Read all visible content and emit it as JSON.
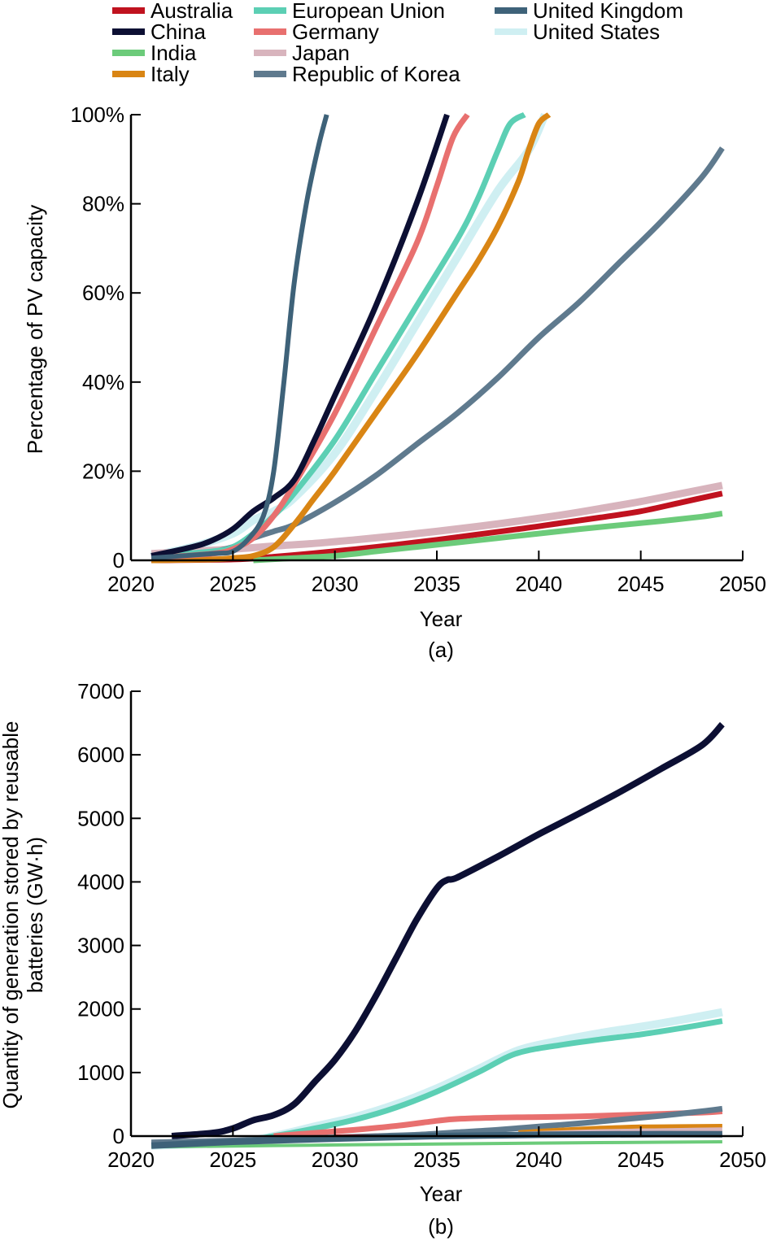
{
  "legend": {
    "entries": [
      {
        "name": "Australia",
        "color": "#c0121f"
      },
      {
        "name": "China",
        "color": "#0c0f33"
      },
      {
        "name": "India",
        "color": "#6ccb7a"
      },
      {
        "name": "Italy",
        "color": "#d98514"
      },
      {
        "name": "European Union",
        "color": "#5ccfb4"
      },
      {
        "name": "Germany",
        "color": "#e8706f"
      },
      {
        "name": "Japan",
        "color": "#d8b4bd"
      },
      {
        "name": "Republic of Korea",
        "color": "#5f7a8e"
      },
      {
        "name": "United Kingdom",
        "color": "#3e6279"
      },
      {
        "name": "United States",
        "color": "#cfeff2"
      }
    ]
  },
  "chart_data": [
    {
      "id": "a",
      "panel_label": "(a)",
      "type": "line",
      "title": "",
      "xlabel": "Year",
      "ylabel": "Percentage of PV capacity",
      "xlim": [
        2020,
        2050
      ],
      "ylim": [
        0,
        100
      ],
      "xticks": [
        2020,
        2025,
        2030,
        2035,
        2040,
        2045,
        2050
      ],
      "xtick_labels": [
        "2020",
        "2025",
        "2030",
        "2035",
        "2040",
        "2045",
        "2050"
      ],
      "yticks": [
        0,
        20,
        40,
        60,
        80,
        100
      ],
      "ytick_labels": [
        "0",
        "20%",
        "40%",
        "60%",
        "80%",
        "100%"
      ],
      "grid": false,
      "legend_position": "top",
      "series": [
        {
          "name": "United States",
          "x": [
            2021,
            2023,
            2025,
            2026,
            2027,
            2028,
            2030,
            2032,
            2034,
            2036,
            2038,
            2039.5,
            2040.3
          ],
          "y": [
            1,
            3,
            6,
            9,
            11,
            14,
            24,
            38,
            53,
            68,
            83,
            92,
            100
          ]
        },
        {
          "name": "Japan",
          "x": [
            2021,
            2023,
            2025,
            2027,
            2029,
            2031,
            2033,
            2035,
            2037,
            2039,
            2041,
            2043,
            2045,
            2047,
            2049
          ],
          "y": [
            1.5,
            2,
            2.5,
            3.2,
            3.8,
            4.6,
            5.5,
            6.5,
            7.6,
            8.8,
            10.1,
            11.6,
            13.2,
            15,
            16.8
          ]
        },
        {
          "name": "Republic of Korea",
          "x": [
            2021,
            2023,
            2025,
            2026,
            2027,
            2028,
            2030,
            2032,
            2034,
            2036,
            2038,
            2040,
            2042,
            2044,
            2046,
            2048,
            2049
          ],
          "y": [
            0.5,
            1,
            3,
            5,
            6.5,
            8,
            13,
            19,
            26,
            33,
            41,
            50,
            58,
            67,
            76,
            86,
            92.5
          ]
        },
        {
          "name": "Australia",
          "x": [
            2021,
            2025,
            2027,
            2029,
            2031,
            2033,
            2035,
            2037,
            2039,
            2041,
            2043,
            2045,
            2047,
            2049
          ],
          "y": [
            0,
            0.2,
            0.8,
            1.6,
            2.5,
            3.5,
            4.6,
            5.8,
            7.0,
            8.3,
            9.6,
            11.0,
            13.0,
            15.0
          ]
        },
        {
          "name": "India",
          "x": [
            2026,
            2028,
            2030,
            2032,
            2034,
            2036,
            2038,
            2040,
            2042,
            2044,
            2046,
            2048,
            2049
          ],
          "y": [
            0,
            0.5,
            1,
            2,
            3,
            4,
            5,
            6,
            7,
            7.9,
            8.8,
            9.8,
            10.5
          ]
        },
        {
          "name": "Italy",
          "x": [
            2021,
            2024,
            2025,
            2026,
            2027,
            2028,
            2029,
            2030,
            2032,
            2034,
            2036,
            2037,
            2038,
            2039,
            2039.5,
            2040,
            2040.5
          ],
          "y": [
            0,
            0.2,
            0.5,
            1,
            3,
            8,
            14,
            20,
            33,
            46,
            60,
            67,
            75,
            85,
            92,
            98,
            100
          ]
        },
        {
          "name": "European Union",
          "x": [
            2021,
            2024,
            2025,
            2026,
            2027,
            2028,
            2030,
            2032,
            2034,
            2036,
            2037,
            2038,
            2038.6,
            2039.3
          ],
          "y": [
            1,
            2,
            3,
            6,
            10,
            15,
            27,
            42,
            57,
            72,
            81,
            92,
            98,
            100
          ]
        },
        {
          "name": "Germany",
          "x": [
            2021,
            2024,
            2025,
            2026,
            2027,
            2028,
            2030,
            2032,
            2034,
            2035,
            2035.8,
            2036.5
          ],
          "y": [
            0.5,
            1.5,
            2.5,
            5,
            10,
            17,
            33,
            52,
            71,
            84,
            95,
            100
          ]
        },
        {
          "name": "China",
          "x": [
            2021,
            2023,
            2024,
            2025,
            2026,
            2027,
            2028,
            2029,
            2030,
            2032,
            2034,
            2035.5
          ],
          "y": [
            1,
            3,
            4.5,
            7,
            11,
            14,
            18,
            27,
            37,
            57,
            80,
            100
          ]
        },
        {
          "name": "United Kingdom",
          "x": [
            2021,
            2024,
            2025,
            2025.8,
            2026.5,
            2027,
            2027.5,
            2028,
            2028.6,
            2029.2,
            2029.6
          ],
          "y": [
            0.5,
            1.5,
            2,
            5,
            10,
            20,
            40,
            62,
            80,
            93,
            100
          ]
        }
      ]
    },
    {
      "id": "b",
      "panel_label": "(b)",
      "type": "line",
      "title": "",
      "xlabel": "Year",
      "ylabel": "Quantity of generation stored by reusable batteries (GW·h)",
      "ylabel_lines": [
        "Quantity of generation stored by reusable",
        "batteries (GW·h)"
      ],
      "xlim": [
        2020,
        2050
      ],
      "ylim": [
        0,
        7000
      ],
      "xticks": [
        2020,
        2025,
        2030,
        2035,
        2040,
        2045,
        2050
      ],
      "xtick_labels": [
        "2020",
        "2025",
        "2030",
        "2035",
        "2040",
        "2045",
        "2050"
      ],
      "yticks": [
        0,
        1000,
        2000,
        3000,
        4000,
        5000,
        6000,
        7000
      ],
      "ytick_labels": [
        "0",
        "1000",
        "2000",
        "3000",
        "4000",
        "5000",
        "6000",
        "7000"
      ],
      "grid": false,
      "legend_position": "top",
      "series": [
        {
          "name": "United States",
          "x": [
            2021,
            2025,
            2027,
            2029,
            2031,
            2033,
            2035,
            2037,
            2039,
            2041,
            2043,
            2045,
            2047,
            2049
          ],
          "y": [
            -150,
            -100,
            0,
            150,
            300,
            500,
            750,
            1050,
            1350,
            1500,
            1620,
            1720,
            1830,
            1950
          ]
        },
        {
          "name": "European Union",
          "x": [
            2021,
            2025,
            2027,
            2029,
            2031,
            2033,
            2035,
            2037,
            2038.5,
            2039.5,
            2041,
            2043,
            2045,
            2047,
            2049
          ],
          "y": [
            -150,
            -100,
            0,
            120,
            260,
            450,
            700,
            1000,
            1250,
            1350,
            1430,
            1520,
            1600,
            1700,
            1810
          ]
        },
        {
          "name": "China",
          "x": [
            2022,
            2024,
            2025,
            2026,
            2027,
            2028,
            2029,
            2030,
            2031,
            2032,
            2033,
            2034,
            2035,
            2035.5,
            2036,
            2038,
            2040,
            2042,
            2044,
            2046,
            2048,
            2049
          ],
          "y": [
            0,
            50,
            120,
            250,
            330,
            500,
            850,
            1200,
            1650,
            2200,
            2800,
            3400,
            3900,
            4030,
            4070,
            4400,
            4750,
            5080,
            5420,
            5780,
            6150,
            6480
          ]
        },
        {
          "name": "Germany",
          "x": [
            2027,
            2029,
            2031,
            2033,
            2035,
            2036,
            2038,
            2040,
            2042,
            2044,
            2046,
            2048,
            2049
          ],
          "y": [
            0,
            50,
            100,
            160,
            240,
            270,
            290,
            300,
            310,
            330,
            350,
            370,
            390
          ]
        },
        {
          "name": "Republic of Korea",
          "x": [
            2021,
            2025,
            2028,
            2030,
            2032,
            2034,
            2036,
            2038,
            2040,
            2042,
            2044,
            2046,
            2048,
            2049
          ],
          "y": [
            -100,
            -70,
            -40,
            -20,
            0,
            20,
            60,
            100,
            150,
            200,
            260,
            320,
            390,
            430
          ]
        },
        {
          "name": "Italy",
          "x": [
            2039,
            2041,
            2043,
            2045,
            2047,
            2049
          ],
          "y": [
            60,
            100,
            130,
            150,
            155,
            160
          ]
        },
        {
          "name": "Japan",
          "x": [
            2039,
            2041,
            2043,
            2045,
            2047,
            2049
          ],
          "y": [
            30,
            50,
            70,
            80,
            90,
            100
          ]
        },
        {
          "name": "Australia",
          "x": [
            2030,
            2035,
            2040,
            2045,
            2049
          ],
          "y": [
            0,
            5,
            10,
            15,
            20
          ]
        },
        {
          "name": "India",
          "x": [
            2021,
            2030,
            2040,
            2049
          ],
          "y": [
            -170,
            -140,
            -110,
            -90
          ]
        },
        {
          "name": "United Kingdom",
          "x": [
            2021,
            2025,
            2030,
            2035,
            2040,
            2045,
            2049
          ],
          "y": [
            -150,
            -90,
            -40,
            0,
            20,
            30,
            30
          ]
        }
      ]
    }
  ]
}
